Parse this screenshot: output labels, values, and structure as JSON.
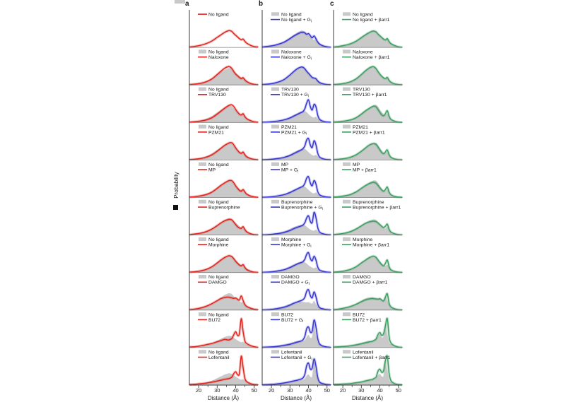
{
  "colors": {
    "gray_fill": "#c9c9c9",
    "red": "#e0241f",
    "red_band": "rgba(228,60,50,0.28)",
    "blue": "#3737d0",
    "blue_band": "rgba(85,85,220,0.28)",
    "green": "#3f9e63",
    "green_band": "rgba(85,170,115,0.30)",
    "axis": "#3c3c3c",
    "separator": "#7d7d7d",
    "crop_square": "#111111",
    "crop_swatch": "#c9c9c9"
  },
  "chart_data": {
    "type": "area",
    "xlabel": "Distance (Å)",
    "ylabel": "Probability",
    "x_ticks": [
      20,
      30,
      40,
      50
    ],
    "minor_ticks": [
      25,
      35,
      45
    ],
    "x_range": [
      15,
      52
    ],
    "grid": false,
    "legend_position": "top-left-inside",
    "x": [
      15,
      18,
      21,
      24,
      27,
      30,
      32,
      34,
      36,
      37,
      38,
      39,
      40,
      41,
      42,
      43,
      44,
      45,
      46,
      48,
      50,
      52
    ],
    "curves": {
      "no_ligand": {
        "scale": 0.72,
        "values": [
          0.02,
          0.05,
          0.1,
          0.18,
          0.3,
          0.48,
          0.6,
          0.72,
          0.8,
          0.8,
          0.76,
          0.66,
          0.58,
          0.5,
          0.42,
          0.37,
          0.4,
          0.29,
          0.2,
          0.1,
          0.04,
          0.02
        ]
      },
      "no_ligand_gi": {
        "scale": 0.72,
        "values": [
          0.02,
          0.05,
          0.09,
          0.16,
          0.26,
          0.42,
          0.54,
          0.64,
          0.72,
          0.72,
          0.7,
          0.63,
          0.66,
          0.56,
          0.46,
          0.55,
          0.42,
          0.26,
          0.16,
          0.07,
          0.03,
          0.01
        ]
      },
      "no_ligand_barr": {
        "scale": 0.72,
        "values": [
          0.02,
          0.05,
          0.1,
          0.17,
          0.29,
          0.47,
          0.59,
          0.7,
          0.78,
          0.78,
          0.74,
          0.64,
          0.56,
          0.48,
          0.4,
          0.36,
          0.42,
          0.28,
          0.18,
          0.09,
          0.03,
          0.01
        ]
      },
      "naloxone": {
        "scale": 0.72,
        "values": [
          0.02,
          0.04,
          0.08,
          0.15,
          0.28,
          0.5,
          0.65,
          0.8,
          0.88,
          0.86,
          0.78,
          0.64,
          0.52,
          0.44,
          0.36,
          0.3,
          0.34,
          0.24,
          0.16,
          0.07,
          0.03,
          0.01
        ]
      },
      "naloxone_gi": {
        "scale": 0.72,
        "values": [
          0.02,
          0.04,
          0.08,
          0.15,
          0.27,
          0.48,
          0.64,
          0.78,
          0.86,
          0.85,
          0.78,
          0.66,
          0.56,
          0.46,
          0.36,
          0.33,
          0.3,
          0.19,
          0.11,
          0.05,
          0.02,
          0.01
        ]
      },
      "naloxone_barr": {
        "scale": 0.72,
        "values": [
          0.02,
          0.04,
          0.08,
          0.15,
          0.28,
          0.5,
          0.66,
          0.8,
          0.88,
          0.86,
          0.78,
          0.64,
          0.52,
          0.42,
          0.34,
          0.3,
          0.36,
          0.22,
          0.13,
          0.05,
          0.02,
          0.01
        ]
      },
      "trv130": {
        "scale": 0.72,
        "values": [
          0.02,
          0.04,
          0.07,
          0.12,
          0.22,
          0.4,
          0.54,
          0.68,
          0.8,
          0.84,
          0.84,
          0.76,
          0.62,
          0.5,
          0.4,
          0.36,
          0.42,
          0.28,
          0.18,
          0.09,
          0.03,
          0.01
        ]
      },
      "trv130_gi": {
        "scale": 0.78,
        "values": [
          0.01,
          0.02,
          0.04,
          0.07,
          0.12,
          0.2,
          0.28,
          0.36,
          0.44,
          0.48,
          0.6,
          0.85,
          1.0,
          0.7,
          0.55,
          0.8,
          0.7,
          0.32,
          0.14,
          0.05,
          0.02,
          0.01
        ]
      },
      "trv130_barr": {
        "scale": 0.72,
        "values": [
          0.02,
          0.04,
          0.07,
          0.12,
          0.22,
          0.4,
          0.54,
          0.66,
          0.76,
          0.78,
          0.74,
          0.62,
          0.48,
          0.36,
          0.32,
          0.42,
          0.56,
          0.3,
          0.15,
          0.06,
          0.02,
          0.01
        ]
      },
      "pzm21": {
        "scale": 0.72,
        "values": [
          0.02,
          0.04,
          0.07,
          0.13,
          0.24,
          0.42,
          0.56,
          0.7,
          0.8,
          0.83,
          0.82,
          0.72,
          0.58,
          0.46,
          0.36,
          0.32,
          0.38,
          0.25,
          0.15,
          0.07,
          0.03,
          0.01
        ]
      },
      "pzm21_gi": {
        "scale": 0.78,
        "values": [
          0.01,
          0.02,
          0.04,
          0.07,
          0.12,
          0.2,
          0.28,
          0.36,
          0.44,
          0.5,
          0.62,
          0.88,
          0.95,
          0.66,
          0.55,
          0.85,
          0.68,
          0.3,
          0.13,
          0.05,
          0.02,
          0.01
        ]
      },
      "pzm21_barr": {
        "scale": 0.72,
        "values": [
          0.02,
          0.04,
          0.07,
          0.13,
          0.24,
          0.42,
          0.56,
          0.7,
          0.78,
          0.78,
          0.74,
          0.62,
          0.48,
          0.36,
          0.3,
          0.38,
          0.48,
          0.26,
          0.13,
          0.05,
          0.02,
          0.01
        ]
      },
      "mp": {
        "scale": 0.72,
        "values": [
          0.02,
          0.04,
          0.08,
          0.14,
          0.25,
          0.44,
          0.58,
          0.7,
          0.8,
          0.82,
          0.8,
          0.7,
          0.56,
          0.44,
          0.34,
          0.3,
          0.38,
          0.26,
          0.16,
          0.07,
          0.03,
          0.01
        ]
      },
      "mp_gi": {
        "scale": 0.78,
        "values": [
          0.01,
          0.02,
          0.04,
          0.08,
          0.13,
          0.22,
          0.3,
          0.38,
          0.46,
          0.5,
          0.62,
          0.85,
          0.92,
          0.64,
          0.52,
          0.75,
          0.6,
          0.26,
          0.12,
          0.05,
          0.02,
          0.01
        ]
      },
      "mp_barr": {
        "scale": 0.72,
        "values": [
          0.02,
          0.04,
          0.08,
          0.14,
          0.26,
          0.44,
          0.56,
          0.66,
          0.72,
          0.72,
          0.68,
          0.58,
          0.46,
          0.36,
          0.3,
          0.38,
          0.5,
          0.26,
          0.13,
          0.05,
          0.02,
          0.01
        ]
      },
      "buprenorphine": {
        "scale": 0.72,
        "values": [
          0.02,
          0.05,
          0.09,
          0.16,
          0.28,
          0.45,
          0.58,
          0.68,
          0.74,
          0.75,
          0.72,
          0.62,
          0.5,
          0.4,
          0.34,
          0.32,
          0.4,
          0.26,
          0.15,
          0.06,
          0.02,
          0.01
        ]
      },
      "buprenorphine_gi": {
        "scale": 0.78,
        "values": [
          0.01,
          0.02,
          0.04,
          0.07,
          0.12,
          0.2,
          0.28,
          0.34,
          0.4,
          0.44,
          0.54,
          0.75,
          0.85,
          0.6,
          0.55,
          1.0,
          0.78,
          0.33,
          0.13,
          0.05,
          0.02,
          0.01
        ]
      },
      "buprenorphine_barr": {
        "scale": 0.72,
        "values": [
          0.02,
          0.05,
          0.09,
          0.16,
          0.28,
          0.44,
          0.55,
          0.62,
          0.66,
          0.66,
          0.64,
          0.58,
          0.5,
          0.42,
          0.36,
          0.42,
          0.52,
          0.28,
          0.14,
          0.06,
          0.02,
          0.01
        ]
      },
      "morphine": {
        "scale": 0.72,
        "values": [
          0.02,
          0.04,
          0.08,
          0.15,
          0.27,
          0.46,
          0.6,
          0.72,
          0.8,
          0.8,
          0.76,
          0.66,
          0.54,
          0.44,
          0.36,
          0.32,
          0.38,
          0.24,
          0.14,
          0.06,
          0.02,
          0.01
        ]
      },
      "morphine_gi": {
        "scale": 0.78,
        "values": [
          0.01,
          0.02,
          0.04,
          0.08,
          0.13,
          0.22,
          0.3,
          0.38,
          0.44,
          0.48,
          0.58,
          0.8,
          0.88,
          0.62,
          0.52,
          0.72,
          0.56,
          0.24,
          0.11,
          0.05,
          0.02,
          0.01
        ]
      },
      "morphine_barr": {
        "scale": 0.72,
        "values": [
          0.02,
          0.04,
          0.08,
          0.15,
          0.27,
          0.46,
          0.58,
          0.7,
          0.78,
          0.78,
          0.72,
          0.6,
          0.48,
          0.38,
          0.32,
          0.44,
          0.6,
          0.28,
          0.13,
          0.05,
          0.02,
          0.01
        ]
      },
      "damgo": {
        "scale": 0.72,
        "values": [
          0.02,
          0.05,
          0.1,
          0.18,
          0.3,
          0.45,
          0.55,
          0.6,
          0.62,
          0.6,
          0.58,
          0.56,
          0.58,
          0.52,
          0.48,
          0.68,
          0.46,
          0.26,
          0.17,
          0.09,
          0.04,
          0.02
        ]
      },
      "damgo_gi": {
        "scale": 0.78,
        "values": [
          0.01,
          0.02,
          0.04,
          0.08,
          0.13,
          0.22,
          0.3,
          0.36,
          0.42,
          0.46,
          0.56,
          0.82,
          0.9,
          0.64,
          0.54,
          0.8,
          0.6,
          0.26,
          0.11,
          0.05,
          0.02,
          0.01
        ]
      },
      "damgo_barr": {
        "scale": 0.72,
        "values": [
          0.02,
          0.05,
          0.1,
          0.17,
          0.27,
          0.4,
          0.48,
          0.53,
          0.55,
          0.54,
          0.53,
          0.52,
          0.54,
          0.48,
          0.44,
          0.62,
          0.78,
          0.32,
          0.15,
          0.06,
          0.02,
          0.01
        ]
      },
      "bu72": {
        "scale": 1.0,
        "values": [
          0.02,
          0.03,
          0.06,
          0.1,
          0.14,
          0.2,
          0.24,
          0.28,
          0.26,
          0.28,
          0.32,
          0.45,
          0.55,
          0.42,
          0.48,
          1.0,
          0.55,
          0.22,
          0.14,
          0.07,
          0.03,
          0.01
        ]
      },
      "bu72_gi": {
        "scale": 0.95,
        "values": [
          0.01,
          0.02,
          0.03,
          0.05,
          0.08,
          0.12,
          0.16,
          0.2,
          0.24,
          0.28,
          0.4,
          0.68,
          0.75,
          0.56,
          0.6,
          1.0,
          0.76,
          0.32,
          0.13,
          0.05,
          0.02,
          0.01
        ]
      },
      "bu72_barr": {
        "scale": 1.0,
        "values": [
          0.02,
          0.03,
          0.04,
          0.06,
          0.09,
          0.13,
          0.16,
          0.19,
          0.22,
          0.25,
          0.3,
          0.45,
          0.52,
          0.42,
          0.48,
          0.75,
          1.0,
          0.38,
          0.16,
          0.06,
          0.02,
          0.01
        ]
      },
      "lofentanil": {
        "scale": 1.0,
        "values": [
          0.02,
          0.03,
          0.05,
          0.07,
          0.1,
          0.14,
          0.17,
          0.2,
          0.22,
          0.24,
          0.28,
          0.4,
          0.46,
          0.36,
          0.4,
          1.0,
          0.6,
          0.22,
          0.12,
          0.05,
          0.02,
          0.01
        ]
      },
      "lofentanil_gi": {
        "scale": 0.95,
        "values": [
          0.01,
          0.02,
          0.03,
          0.05,
          0.08,
          0.12,
          0.15,
          0.18,
          0.22,
          0.26,
          0.38,
          0.7,
          0.8,
          0.58,
          0.62,
          0.95,
          0.7,
          0.28,
          0.11,
          0.05,
          0.02,
          0.01
        ]
      },
      "lofentanil_barr": {
        "scale": 1.0,
        "values": [
          0.02,
          0.03,
          0.04,
          0.05,
          0.08,
          0.11,
          0.14,
          0.17,
          0.2,
          0.23,
          0.28,
          0.48,
          0.55,
          0.44,
          0.5,
          0.85,
          1.0,
          0.4,
          0.15,
          0.05,
          0.02,
          0.01
        ]
      }
    },
    "columns": [
      {
        "letter": "a",
        "line_color": "#e0241f",
        "band_color": "rgba(228,60,50,0.28)",
        "fill_scales": [
          0,
          1,
          1,
          1,
          1,
          1,
          1,
          1,
          0.7,
          0.7
        ],
        "panels": [
          {
            "fill": null,
            "fill_label": null,
            "line": "no_ligand",
            "line_label": "No ligand"
          },
          {
            "fill": "no_ligand",
            "fill_label": "No ligand",
            "line": "naloxone",
            "line_label": "Naloxone"
          },
          {
            "fill": "no_ligand",
            "fill_label": "No ligand",
            "line": "trv130",
            "line_label": "TRV130"
          },
          {
            "fill": "no_ligand",
            "fill_label": "No ligand",
            "line": "pzm21",
            "line_label": "PZM21"
          },
          {
            "fill": "no_ligand",
            "fill_label": "No ligand",
            "line": "mp",
            "line_label": "MP"
          },
          {
            "fill": "no_ligand",
            "fill_label": "No ligand",
            "line": "buprenorphine",
            "line_label": "Buprenorphine"
          },
          {
            "fill": "no_ligand",
            "fill_label": "No ligand",
            "line": "morphine",
            "line_label": "Morphine"
          },
          {
            "fill": "no_ligand",
            "fill_label": "No ligand",
            "line": "damgo",
            "line_label": "DAMGO"
          },
          {
            "fill": "no_ligand",
            "fill_label": "No ligand",
            "line": "bu72",
            "line_label": "BU72"
          },
          {
            "fill": "no_ligand",
            "fill_label": "No ligand",
            "line": "lofentanil",
            "line_label": "Lofentanil"
          }
        ]
      },
      {
        "letter": "b",
        "line_color": "#3737d0",
        "band_color": "rgba(85,85,220,0.28)",
        "fill_scales": [
          1,
          1,
          0.65,
          0.65,
          0.65,
          0.65,
          0.65,
          0.65,
          0.8,
          0.8
        ],
        "panels": [
          {
            "fill": "no_ligand",
            "fill_label": "No ligand",
            "line": "no_ligand_gi",
            "line_label": "No ligand + G_i"
          },
          {
            "fill": "naloxone",
            "fill_label": "Naloxone",
            "line": "naloxone_gi",
            "line_label": "Naloxone + G_i"
          },
          {
            "fill": "trv130",
            "fill_label": "TRV130",
            "line": "trv130_gi",
            "line_label": "TRV130 + G_i"
          },
          {
            "fill": "pzm21",
            "fill_label": "PZM21",
            "line": "pzm21_gi",
            "line_label": "PZM21 + G_i"
          },
          {
            "fill": "mp",
            "fill_label": "MP",
            "line": "mp_gi",
            "line_label": "MP + G_i"
          },
          {
            "fill": "buprenorphine",
            "fill_label": "Buprenorphine",
            "line": "buprenorphine_gi",
            "line_label": "Buprenorphine + G_i"
          },
          {
            "fill": "morphine",
            "fill_label": "Morphine",
            "line": "morphine_gi",
            "line_label": "Morphine + G_i"
          },
          {
            "fill": "damgo",
            "fill_label": "DAMGO",
            "line": "damgo_gi",
            "line_label": "DAMGO + G_i"
          },
          {
            "fill": "bu72",
            "fill_label": "BU72",
            "line": "bu72_gi",
            "line_label": "BU72 + G_i"
          },
          {
            "fill": "lofentanil",
            "fill_label": "Lofentanil",
            "line": "lofentanil_gi",
            "line_label": "Lofentanil + G_i"
          }
        ]
      },
      {
        "letter": "c",
        "line_color": "#3f9e63",
        "band_color": "rgba(85,170,115,0.30)",
        "fill_scales": [
          1,
          1,
          1,
          1,
          1,
          1,
          1,
          1,
          0.85,
          0.85
        ],
        "panels": [
          {
            "fill": "no_ligand",
            "fill_label": "No ligand",
            "line": "no_ligand_barr",
            "line_label": "No ligand + βarr1"
          },
          {
            "fill": "naloxone",
            "fill_label": "Naloxone",
            "line": "naloxone_barr",
            "line_label": "Naloxone + βarr1"
          },
          {
            "fill": "trv130",
            "fill_label": "TRV130",
            "line": "trv130_barr",
            "line_label": "TRV130 + βarr1"
          },
          {
            "fill": "pzm21",
            "fill_label": "PZM21",
            "line": "pzm21_barr",
            "line_label": "PZM21 + βarr1"
          },
          {
            "fill": "mp",
            "fill_label": "MP",
            "line": "mp_barr",
            "line_label": "MP + βarr1"
          },
          {
            "fill": "buprenorphine",
            "fill_label": "Buprenorphine",
            "line": "buprenorphine_barr",
            "line_label": "Buprenorphine + βarr1"
          },
          {
            "fill": "morphine",
            "fill_label": "Morphine",
            "line": "morphine_barr",
            "line_label": "Morphine + βarr1"
          },
          {
            "fill": "damgo",
            "fill_label": "DAMGO",
            "line": "damgo_barr",
            "line_label": "DAMGO + βarr1"
          },
          {
            "fill": "bu72",
            "fill_label": "BU72",
            "line": "bu72_barr",
            "line_label": "BU72 + βarr1"
          },
          {
            "fill": "lofentanil",
            "fill_label": "Lofentanil",
            "line": "lofentanil_barr",
            "line_label": "Lofentanil + βarr1"
          }
        ]
      }
    ]
  }
}
